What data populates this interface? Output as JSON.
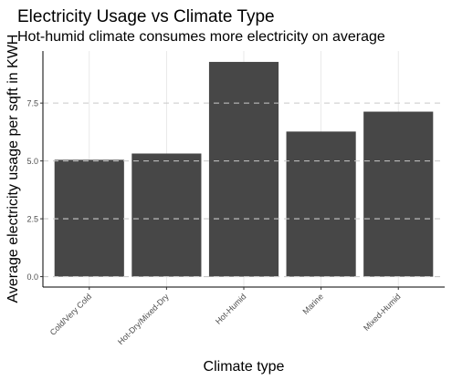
{
  "chart_data": {
    "type": "bar",
    "title": "Electricity Usage vs Climate Type",
    "subtitle": "Hot-humid climate consumes more electricity on average",
    "xlabel": "Climate type",
    "ylabel": "Average electricity usage per sqft in KWH",
    "categories": [
      "Cold/Very Cold",
      "Hot-Dry/Mixed-Dry",
      "Hot-Humid",
      "Marine",
      "Mixed-Humid"
    ],
    "values": [
      5.05,
      5.32,
      9.28,
      6.27,
      7.13
    ],
    "ylim": [
      -0.45,
      9.75
    ],
    "yticks": [
      0,
      2.5,
      5,
      7.5
    ],
    "ytick_labels": [
      "0.0",
      "2.5",
      "5.0",
      "7.5"
    ],
    "grid": true,
    "colors": {
      "bar": "#474747",
      "grid": "#e3e3e3",
      "dashed": "#c9c9c9",
      "axis": "#000000",
      "text": "#000000",
      "tick_text": "#4d4d4d"
    }
  }
}
